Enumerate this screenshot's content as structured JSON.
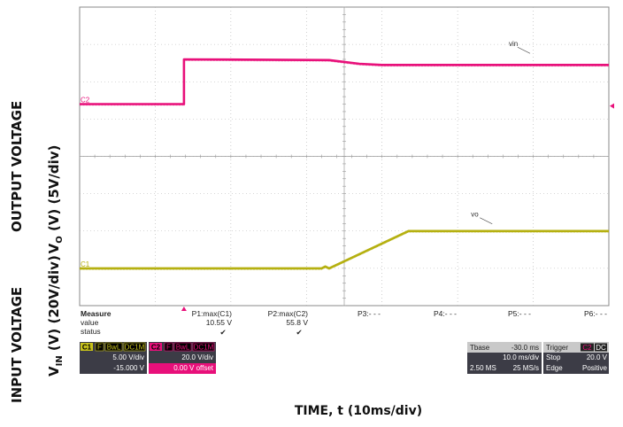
{
  "chart_data": {
    "type": "line",
    "title": "",
    "xlabel": "TIME, t (10ms/div)",
    "ylabel_top_line1": "OUTPUT VOLTAGE",
    "ylabel_top_line2": "V",
    "ylabel_top_sub": "O",
    "ylabel_top_rest": " (V) (5V/div)",
    "ylabel_bottom_line1": "INPUT VOLTAGE",
    "ylabel_bottom_line2": "V",
    "ylabel_bottom_sub": "IN",
    "ylabel_bottom_rest": " (V) (20V/div)",
    "grid": true,
    "x_divisions": 7,
    "y_divisions": 8,
    "x_units": "div",
    "y_units": "div",
    "series": [
      {
        "name": "vin",
        "channel_label": "C2",
        "color": "#e8107a",
        "x": [
          0,
          1.38,
          1.38,
          3.3,
          3.7,
          4.0,
          7.0
        ],
        "y": [
          5.4,
          5.4,
          6.6,
          6.58,
          6.48,
          6.45,
          6.45
        ]
      },
      {
        "name": "vo",
        "channel_label": "C1",
        "color": "#b5b010",
        "x": [
          0,
          3.2,
          3.25,
          3.3,
          4.35,
          7.0
        ],
        "y": [
          1.0,
          1.0,
          1.05,
          1.0,
          2.0,
          2.0
        ]
      }
    ]
  },
  "measure": {
    "header": "Measure",
    "row_labels": [
      "value",
      "status"
    ],
    "columns": [
      {
        "label": "P1:max(C1)",
        "value": "10.55 V",
        "status": "✔"
      },
      {
        "label": "P2:max(C2)",
        "value": "55.8 V",
        "status": "✔"
      },
      {
        "label": "P3:- - -",
        "value": "",
        "status": ""
      },
      {
        "label": "P4:- - -",
        "value": "",
        "status": ""
      },
      {
        "label": "P5:- - -",
        "value": "",
        "status": ""
      },
      {
        "label": "P6:- - -",
        "value": "",
        "status": ""
      }
    ]
  },
  "ch1": {
    "id": "C1",
    "badges": [
      "F",
      "BwL",
      "DC1M"
    ],
    "vdiv": "5.00 V/div",
    "offset": "-15.000 V",
    "color": "#c8c21a"
  },
  "ch2": {
    "id": "C2",
    "badges": [
      "F",
      "BwL",
      "DC1M"
    ],
    "vdiv": "20.0 V/div",
    "offset": "0.00 V offset",
    "color": "#e8107a"
  },
  "timebase": {
    "label": "Tbase",
    "value": "-30.0 ms",
    "tdiv": "10.0 ms/div",
    "samples": "2.50 MS",
    "rate": "25 MS/s"
  },
  "trigger": {
    "label": "Trigger",
    "channel": "C2",
    "coupling": "DC",
    "mode": "Stop",
    "level": "20.0 V",
    "type": "Edge",
    "slope": "Positive"
  },
  "colors": {
    "grid": "#b0b0b0",
    "panel_bg": "#3c3c46",
    "pink": "#e8107a",
    "olive": "#b5b010"
  }
}
